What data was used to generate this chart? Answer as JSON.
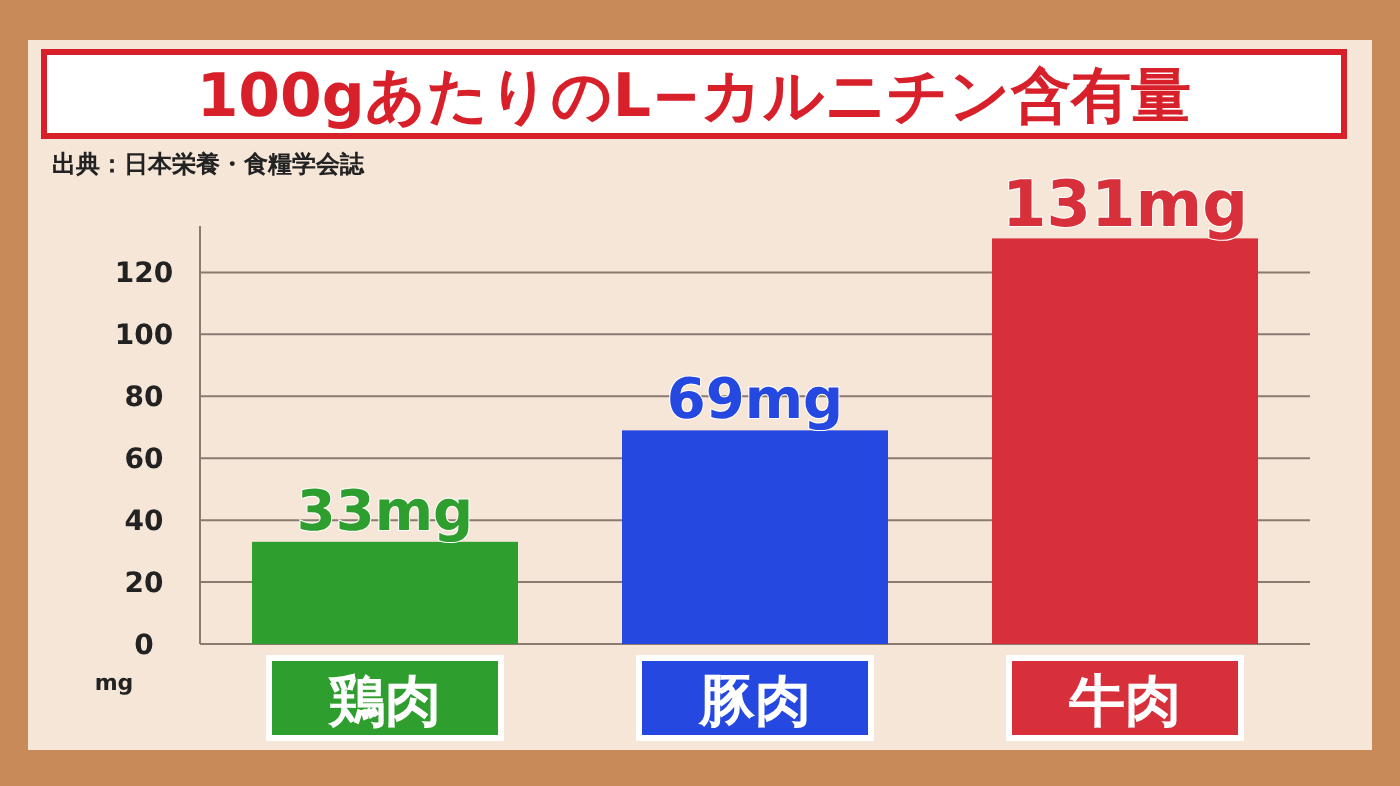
{
  "chart_data": {
    "type": "bar",
    "title": "100gあたりのL−カルニチン含有量",
    "annotations": [
      "出典：日本栄養・食糧学会誌"
    ],
    "categories": [
      "鶏肉",
      "豚肉",
      "牛肉"
    ],
    "values": [
      33,
      69,
      131
    ],
    "colors": [
      "#2e9e2e",
      "#2448e0",
      "#d8303a"
    ],
    "value_labels": [
      "33mg",
      "69mg",
      "131mg"
    ],
    "ylabel": "mg",
    "ylim": [
      0,
      135
    ],
    "yticks": [
      0,
      20,
      40,
      60,
      80,
      100,
      120
    ],
    "grid": "y"
  }
}
